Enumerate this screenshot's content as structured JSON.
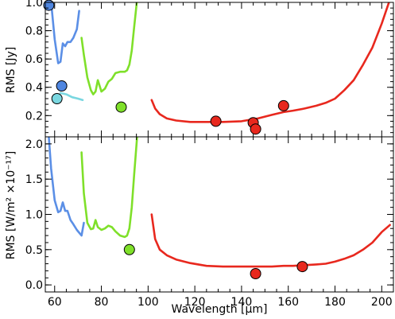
{
  "chart_data": [
    {
      "type": "line",
      "ylabel": "RMS [Jy]",
      "xlim": [
        56,
        205
      ],
      "ylim": [
        0.05,
        1.0
      ],
      "xticks": [
        60,
        80,
        100,
        120,
        140,
        160,
        180,
        200
      ],
      "yticks": [
        0.2,
        0.4,
        0.6,
        0.8,
        1.0
      ],
      "ytick_labels": [
        "0.2",
        "0.4",
        "0.6",
        "0.8",
        "1.0"
      ],
      "series": [
        {
          "color": "#5b8fe6",
          "x": [
            57.5,
            58.8,
            60,
            61.5,
            62.5,
            63.5,
            64.5,
            65.5,
            66.8,
            68,
            69.5,
            70.5
          ],
          "y": [
            1.02,
            0.95,
            0.74,
            0.57,
            0.58,
            0.71,
            0.69,
            0.72,
            0.72,
            0.75,
            0.81,
            0.94
          ]
        },
        {
          "color": "#7ad7e0",
          "x": [
            62.5,
            65,
            67.5,
            70,
            72
          ],
          "y": [
            0.36,
            0.35,
            0.33,
            0.32,
            0.31
          ]
        },
        {
          "color": "#7fe02a",
          "x": [
            71.5,
            72.5,
            74,
            75.5,
            76.5,
            77.5,
            78.5,
            80,
            81.5,
            83,
            84.5,
            86,
            88,
            90,
            91,
            92,
            93,
            94,
            95.3
          ],
          "y": [
            0.75,
            0.63,
            0.47,
            0.38,
            0.35,
            0.37,
            0.45,
            0.37,
            0.39,
            0.44,
            0.46,
            0.5,
            0.51,
            0.51,
            0.52,
            0.56,
            0.66,
            0.82,
            1.02
          ]
        },
        {
          "color": "#e8281e",
          "x": [
            101.5,
            103,
            105,
            108,
            112,
            118,
            125,
            132,
            140,
            147,
            153,
            158,
            162,
            167,
            172,
            176,
            180,
            184,
            188,
            192,
            196,
            200,
            203.5
          ],
          "y": [
            0.31,
            0.25,
            0.21,
            0.18,
            0.165,
            0.155,
            0.155,
            0.155,
            0.16,
            0.18,
            0.205,
            0.225,
            0.235,
            0.25,
            0.27,
            0.29,
            0.32,
            0.38,
            0.45,
            0.56,
            0.68,
            0.85,
            1.02
          ]
        }
      ],
      "points": [
        {
          "x": 57.5,
          "y": 0.98,
          "color": "#4f86e0"
        },
        {
          "x": 63,
          "y": 0.41,
          "color": "#4f86e0"
        },
        {
          "x": 61,
          "y": 0.32,
          "color": "#7ad7e0"
        },
        {
          "x": 88.5,
          "y": 0.26,
          "color": "#7fe02a"
        },
        {
          "x": 129,
          "y": 0.16,
          "color": "#e8281e"
        },
        {
          "x": 145,
          "y": 0.15,
          "color": "#e8281e"
        },
        {
          "x": 146,
          "y": 0.105,
          "color": "#e8281e"
        },
        {
          "x": 158,
          "y": 0.27,
          "color": "#e8281e"
        }
      ]
    },
    {
      "type": "line",
      "ylabel": "RMS [W/m² ×10⁻¹⁷]",
      "xlabel": "Wavelength [μm]",
      "xlim": [
        56,
        205
      ],
      "ylim": [
        -0.1,
        2.1
      ],
      "xticks": [
        60,
        80,
        100,
        120,
        140,
        160,
        180,
        200
      ],
      "xtick_labels": [
        "60",
        "80",
        "100",
        "120",
        "140",
        "160",
        "180",
        "200"
      ],
      "yticks": [
        0.0,
        0.5,
        1.0,
        1.5,
        2.0
      ],
      "ytick_labels": [
        "0.0",
        "0.5",
        "1.0",
        "1.5",
        "2.0"
      ],
      "series": [
        {
          "color": "#5b8fe6",
          "x": [
            57.5,
            58.5,
            60,
            61.5,
            62.5,
            63.5,
            64.5,
            65.5,
            66.8,
            68,
            69.5,
            70.5,
            71.5,
            72.5
          ],
          "y": [
            2.1,
            1.65,
            1.2,
            1.03,
            1.05,
            1.17,
            1.05,
            1.05,
            0.92,
            0.86,
            0.78,
            0.74,
            0.7,
            0.88
          ]
        },
        {
          "color": "#7fe02a",
          "x": [
            71.5,
            72.5,
            74,
            75.5,
            76.5,
            77.5,
            78.5,
            80,
            81.5,
            83,
            84.5,
            86,
            88,
            90,
            91,
            92,
            93,
            94,
            95.3
          ],
          "y": [
            1.88,
            1.3,
            0.88,
            0.79,
            0.8,
            0.92,
            0.82,
            0.78,
            0.8,
            0.84,
            0.82,
            0.76,
            0.7,
            0.68,
            0.7,
            0.8,
            1.1,
            1.55,
            2.1
          ]
        },
        {
          "color": "#e8281e",
          "x": [
            101.5,
            103,
            105,
            108,
            112,
            118,
            125,
            132,
            140,
            147,
            153,
            158,
            162,
            167,
            172,
            176,
            180,
            184,
            188,
            192,
            196,
            200,
            203.5
          ],
          "y": [
            1.0,
            0.65,
            0.5,
            0.42,
            0.36,
            0.31,
            0.27,
            0.26,
            0.26,
            0.26,
            0.26,
            0.27,
            0.27,
            0.28,
            0.29,
            0.3,
            0.33,
            0.37,
            0.42,
            0.5,
            0.6,
            0.75,
            0.85
          ]
        }
      ],
      "points": [
        {
          "x": 92,
          "y": 0.5,
          "color": "#7fe02a"
        },
        {
          "x": 146,
          "y": 0.16,
          "color": "#e8281e"
        },
        {
          "x": 166,
          "y": 0.26,
          "color": "#e8281e"
        }
      ]
    }
  ]
}
